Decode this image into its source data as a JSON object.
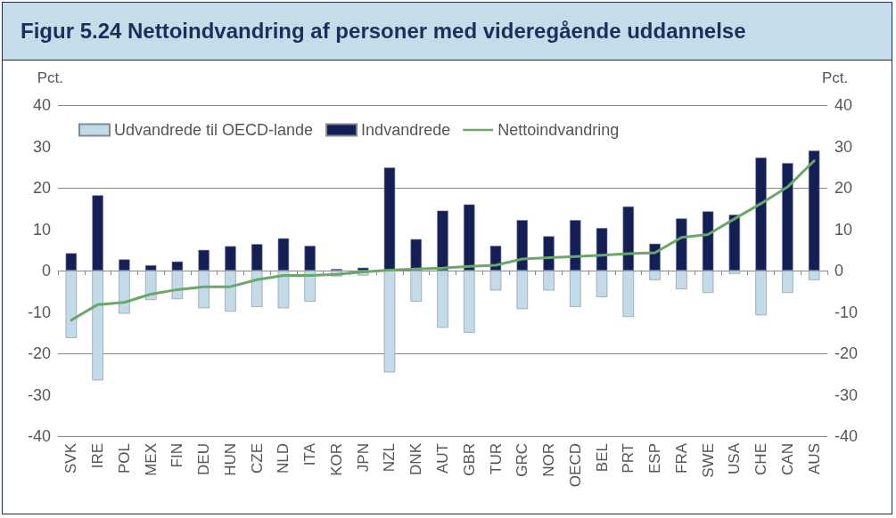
{
  "chart_data": {
    "type": "bar",
    "title": "Figur 5.24 Nettoindvandring af personer med videregående uddannelse",
    "ylabel": "Pct.",
    "y2label": "Pct.",
    "categories": [
      "SVK",
      "IRE",
      "POL",
      "MEX",
      "FIN",
      "DEU",
      "HUN",
      "CZE",
      "NLD",
      "ITA",
      "KOR",
      "JPN",
      "NZL",
      "DNK",
      "AUT",
      "GBR",
      "TUR",
      "GRC",
      "NOR",
      "OECD",
      "BEL",
      "PRT",
      "ESP",
      "FRA",
      "SWE",
      "USA",
      "CHE",
      "CAN",
      "AUS"
    ],
    "stacked": true,
    "series": [
      {
        "name": "Udvandrede til OECD-lande",
        "color": "#c3dbe8",
        "values": [
          -16.3,
          -26.5,
          -10.4,
          -7.1,
          -6.9,
          -9.1,
          -9.9,
          -8.8,
          -9.1,
          -7.5,
          -1.4,
          -1.2,
          -24.6,
          -7.5,
          -13.8,
          -15,
          -4.8,
          -9.3,
          -4.8,
          -8.8,
          -6.4,
          -11.2,
          -2.3,
          -4.5,
          -5.4,
          -0.8,
          -10.8,
          -5.4,
          -2.3
        ]
      },
      {
        "name": "Indvandrede",
        "color": "#131f55",
        "values": [
          4.2,
          18.2,
          2.7,
          1.3,
          2.2,
          5.0,
          5.9,
          6.4,
          7.8,
          6.0,
          0.4,
          0.7,
          24.9,
          7.6,
          14.5,
          16,
          6,
          12.2,
          8.3,
          12.2,
          10.3,
          15.5,
          6.5,
          12.6,
          14.3,
          13.5,
          27.3,
          26,
          29
        ]
      },
      {
        "name": "Nettoindvandring",
        "type": "line",
        "axis": "y2",
        "color": "#6aa86a",
        "values": [
          -12.0,
          -8.2,
          -7.7,
          -5.7,
          -4.6,
          -3.9,
          -3.9,
          -2.2,
          -1.2,
          -1.2,
          -0.9,
          -0.3,
          0.1,
          0.4,
          0.6,
          1.0,
          1.3,
          2.8,
          3.1,
          3.4,
          3.7,
          4.1,
          4.3,
          8.0,
          8.7,
          12.5,
          16.2,
          20.2,
          26.5
        ]
      }
    ],
    "ylim": [
      -40,
      40
    ],
    "yticks": [
      -40,
      -30,
      -20,
      -10,
      0,
      10,
      20,
      30,
      40
    ],
    "y2lim": [
      -40,
      40
    ],
    "y2ticks": [
      -40,
      -30,
      -20,
      -10,
      0,
      10,
      20,
      30,
      40
    ],
    "grid": "y",
    "legend": "top left",
    "marker": "none",
    "line_style": "solid"
  }
}
